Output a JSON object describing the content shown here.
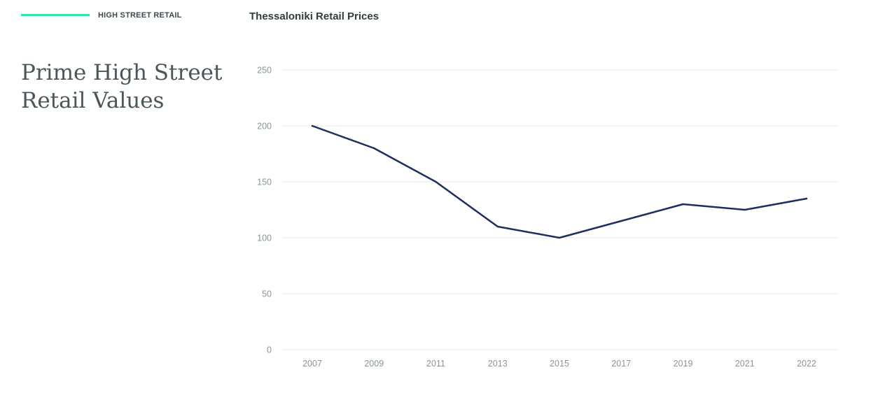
{
  "header": {
    "section_label": "HIGH STREET RETAIL",
    "accent_color": "#2ee6a6"
  },
  "headline": {
    "line1": "Prime High Street",
    "line2": "Retail Values"
  },
  "chart_data": {
    "type": "line",
    "title": "Thessaloniki Retail Prices",
    "xlabel": "",
    "ylabel": "",
    "categories": [
      "2007",
      "2009",
      "2011",
      "2013",
      "2015",
      "2017",
      "2019",
      "2021",
      "2022"
    ],
    "series": [
      {
        "name": "Thessaloniki Retail Prices",
        "color": "#1d2f5e",
        "values": [
          200,
          180,
          150,
          110,
          100,
          115,
          130,
          125,
          135
        ]
      }
    ],
    "ylim": [
      0,
      250
    ],
    "yticks": [
      0,
      50,
      100,
      150,
      200,
      250
    ],
    "grid": true
  }
}
